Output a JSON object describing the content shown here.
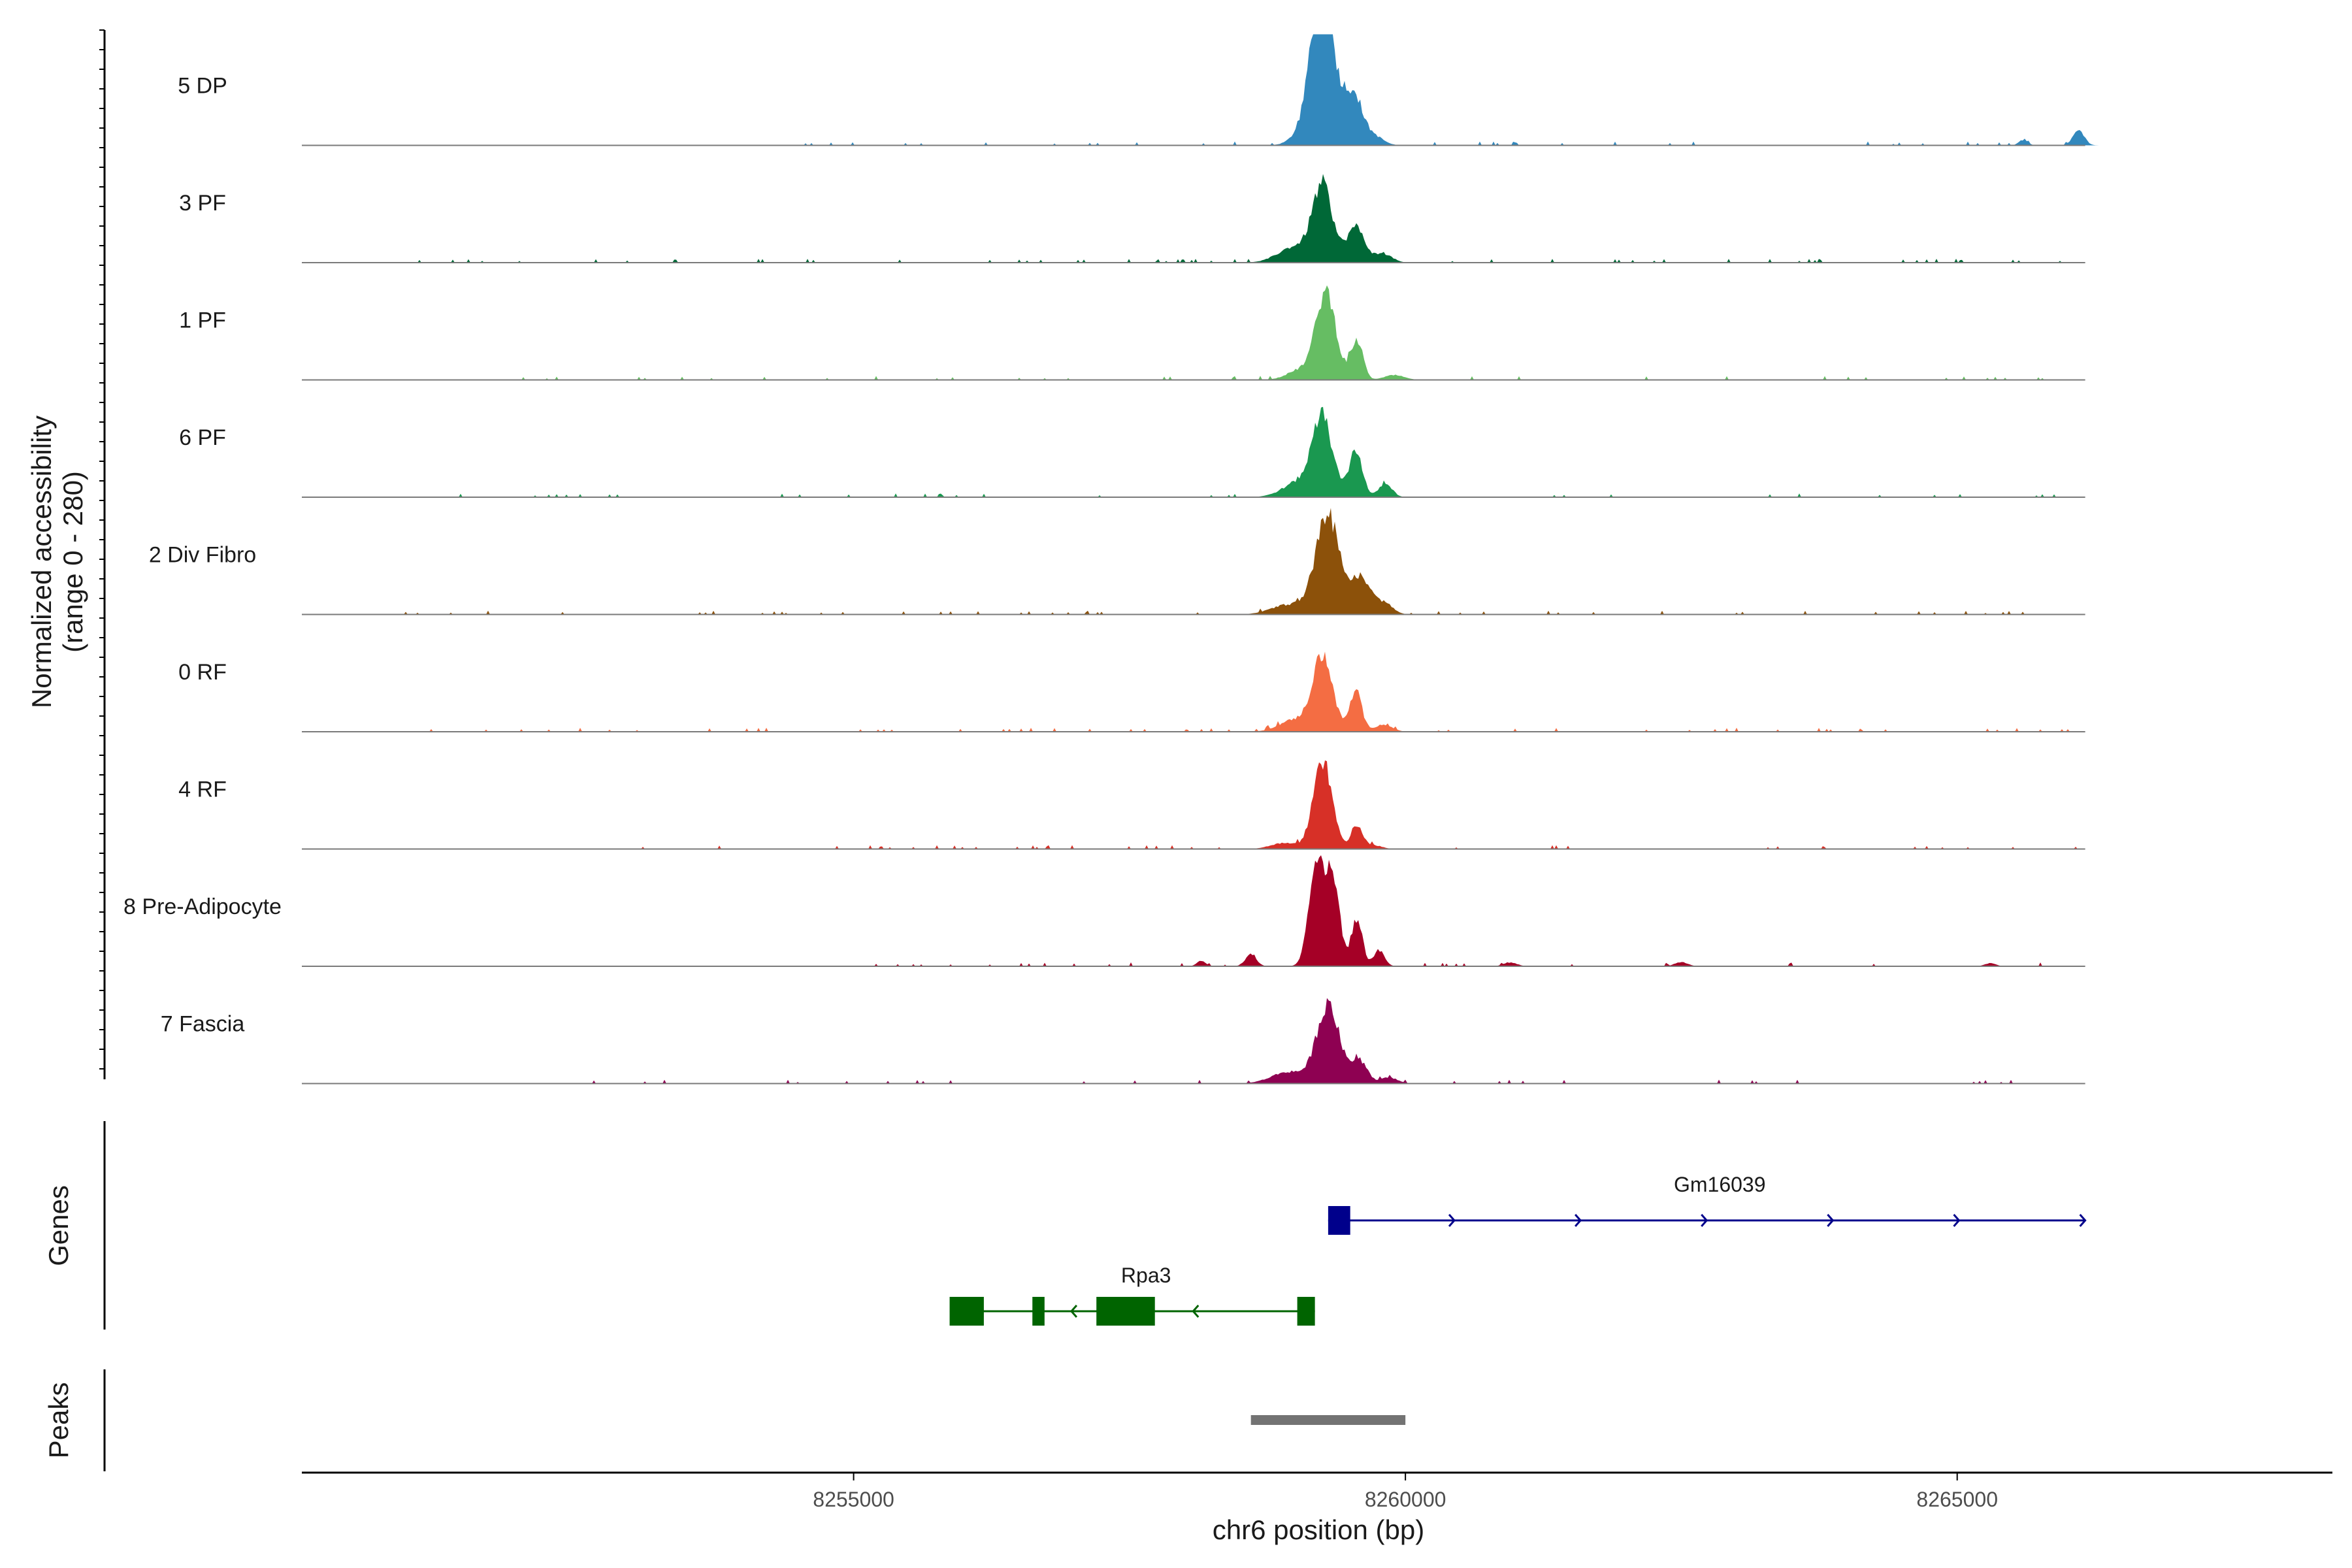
{
  "chart_data": {
    "type": "area",
    "chromosome": "chr6",
    "xlim": [
      8250000,
      8268400
    ],
    "ylim": [
      0,
      280
    ],
    "yaxis_title_line1": "Normalized accessibility",
    "yaxis_title_line2": "(range 0 - 280)",
    "xlabel": "chr6 position (bp)",
    "x_ticks": [
      8255000,
      8260000,
      8265000
    ],
    "x_tick_labels": [
      "8255000",
      "8260000",
      "8265000"
    ],
    "panel_titles": {
      "genes": "Genes",
      "peaks": "Peaks"
    },
    "tracks": [
      {
        "name": "5 DP",
        "color": "#3288bd",
        "peaks": [
          [
            8259230,
            240,
            80
          ],
          [
            8259280,
            200,
            150
          ],
          [
            8259540,
            90,
            70
          ],
          [
            8259700,
            25,
            90
          ],
          [
            8266100,
            40,
            50
          ],
          [
            8265600,
            14,
            40
          ]
        ],
        "noise_range": [
          8253500,
          8266100
        ]
      },
      {
        "name": "3 PF",
        "color": "#006837",
        "peaks": [
          [
            8259250,
            190,
            90
          ],
          [
            8259550,
            90,
            80
          ],
          [
            8259000,
            40,
            150
          ],
          [
            8259800,
            22,
            80
          ]
        ],
        "noise_range": [
          8250800,
          8266100
        ]
      },
      {
        "name": "1 PF",
        "color": "#66bd63",
        "peaks": [
          [
            8259280,
            220,
            90
          ],
          [
            8259560,
            100,
            55
          ],
          [
            8259050,
            25,
            120
          ],
          [
            8259900,
            12,
            90
          ]
        ],
        "noise_range": [
          8251200,
          8266100
        ]
      },
      {
        "name": "6 PF",
        "color": "#1a9850",
        "peaks": [
          [
            8259250,
            190,
            90
          ],
          [
            8259550,
            120,
            60
          ],
          [
            8259050,
            40,
            150
          ],
          [
            8259820,
            35,
            60
          ]
        ],
        "noise_range": [
          8250900,
          8266100
        ]
      },
      {
        "name": "2 Div Fibro",
        "color": "#8c510a",
        "peaks": [
          [
            8259300,
            250,
            110
          ],
          [
            8259600,
            90,
            80
          ],
          [
            8258950,
            25,
            160
          ],
          [
            8259800,
            30,
            80
          ]
        ],
        "noise_range": [
          8250800,
          8266100
        ]
      },
      {
        "name": "0 RF",
        "color": "#f46d43",
        "peaks": [
          [
            8259250,
            190,
            90
          ],
          [
            8259550,
            100,
            55
          ],
          [
            8259000,
            30,
            140
          ],
          [
            8259800,
            18,
            80
          ]
        ],
        "noise_range": [
          8251000,
          8266100
        ]
      },
      {
        "name": "4 RF",
        "color": "#d73027",
        "peaks": [
          [
            8259250,
            220,
            85
          ],
          [
            8259560,
            60,
            50
          ],
          [
            8258900,
            15,
            120
          ],
          [
            8259700,
            10,
            80
          ]
        ],
        "noise_range": [
          8251200,
          8266100
        ]
      },
      {
        "name": "8 Pre-Adipocyte",
        "color": "#a50026",
        "peaks": [
          [
            8259200,
            280,
            70
          ],
          [
            8259350,
            200,
            60
          ],
          [
            8259560,
            120,
            50
          ],
          [
            8259760,
            40,
            50
          ],
          [
            8258600,
            30,
            50
          ],
          [
            8258150,
            14,
            40
          ],
          [
            8260950,
            10,
            60
          ],
          [
            8262500,
            10,
            60
          ],
          [
            8265300,
            8,
            50
          ]
        ],
        "noise_range": [
          8255000,
          8266100
        ]
      },
      {
        "name": "7 Fascia",
        "color": "#8e0152",
        "peaks": [
          [
            8259300,
            200,
            100
          ],
          [
            8259580,
            60,
            70
          ],
          [
            8258950,
            30,
            160
          ],
          [
            8259850,
            15,
            80
          ]
        ],
        "noise_range": [
          8252500,
          8266100
        ]
      }
    ],
    "genes": [
      {
        "name": "Gm16039",
        "strand": "+",
        "color": "#00008b",
        "start": 8259300,
        "end": 8266160,
        "exons": [
          [
            8259300,
            8259500
          ]
        ]
      },
      {
        "name": "Rpa3",
        "strand": "-",
        "color": "#006400",
        "start": 8255870,
        "end": 8259180,
        "exons": [
          [
            8255870,
            8256180
          ],
          [
            8256620,
            8256730
          ],
          [
            8257200,
            8257730
          ],
          [
            8259020,
            8259180
          ]
        ]
      }
    ],
    "peaks": [
      {
        "start": 8258600,
        "end": 8260000,
        "color": "#737373"
      }
    ]
  }
}
